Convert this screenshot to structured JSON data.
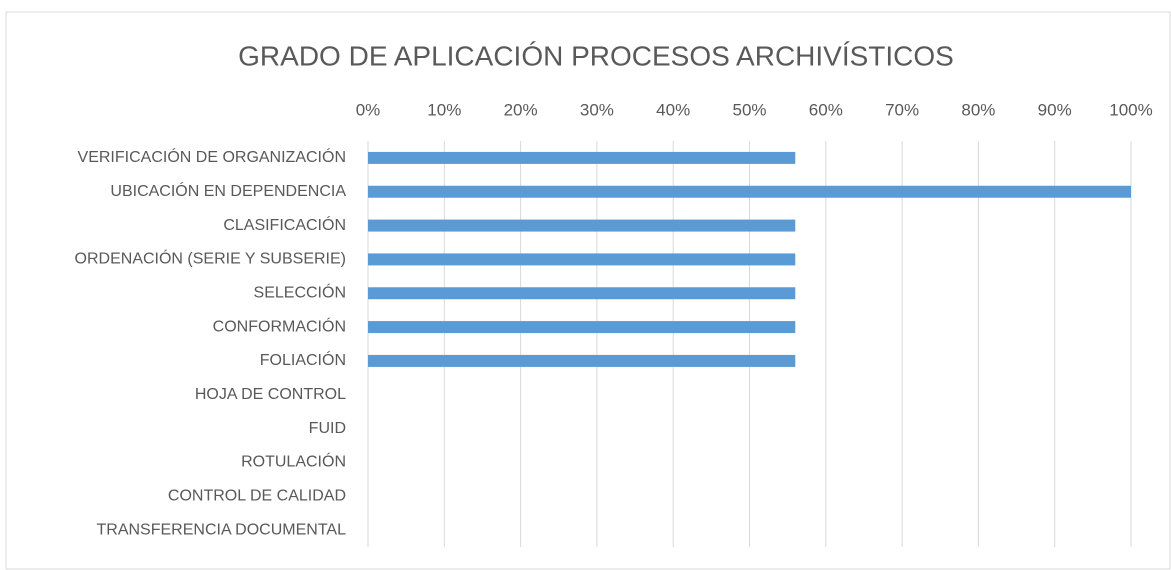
{
  "chart_data": {
    "type": "bar",
    "orientation": "horizontal",
    "title": "GRADO DE APLICACIÓN PROCESOS ARCHIVÍSTICOS",
    "categories": [
      "VERIFICACIÓN DE ORGANIZACIÓN",
      "UBICACIÓN EN DEPENDENCIA",
      "CLASIFICACIÓN",
      "ORDENACIÓN (SERIE Y SUBSERIE)",
      "SELECCIÓN",
      "CONFORMACIÓN",
      "FOLIACIÓN",
      "HOJA DE CONTROL",
      "FUID",
      "ROTULACIÓN",
      "CONTROL DE CALIDAD",
      "TRANSFERENCIA DOCUMENTAL"
    ],
    "values": [
      56,
      100,
      56,
      56,
      56,
      56,
      56,
      0,
      0,
      0,
      0,
      0
    ],
    "color": "#5b9bd5",
    "xlim": [
      0,
      100
    ],
    "xticks": [
      {
        "value": 0,
        "label": "0%"
      },
      {
        "value": 10,
        "label": "10%"
      },
      {
        "value": 20,
        "label": "20%"
      },
      {
        "value": 30,
        "label": "30%"
      },
      {
        "value": 40,
        "label": "40%"
      },
      {
        "value": 50,
        "label": "50%"
      },
      {
        "value": 60,
        "label": "60%"
      },
      {
        "value": 70,
        "label": "70%"
      },
      {
        "value": 80,
        "label": "80%"
      },
      {
        "value": 90,
        "label": "90%"
      },
      {
        "value": 100,
        "label": "100%"
      }
    ],
    "grid": true
  }
}
